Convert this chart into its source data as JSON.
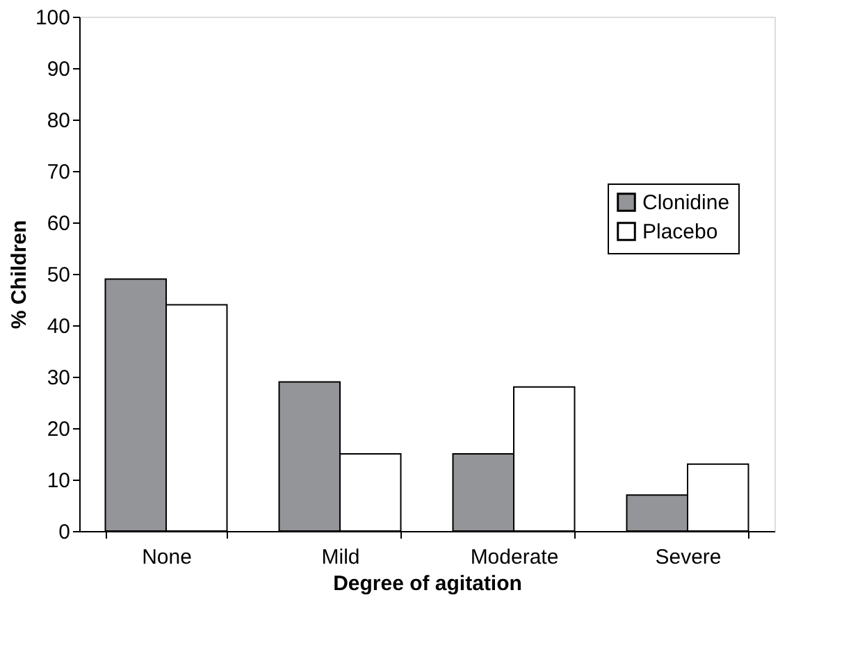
{
  "chart_data": {
    "type": "bar",
    "xlabel": "Degree of agitation",
    "ylabel": "% Children",
    "categories": [
      "None",
      "Mild",
      "Moderate",
      "Severe"
    ],
    "series": [
      {
        "name": "Clonidine",
        "color": "#939598",
        "values": [
          49,
          29,
          15,
          7
        ]
      },
      {
        "name": "Placebo",
        "color": "#ffffff",
        "values": [
          44,
          15,
          28,
          13
        ]
      }
    ],
    "ylim": [
      0,
      100
    ],
    "yticks": [
      0,
      10,
      20,
      30,
      40,
      50,
      60,
      70,
      80,
      90,
      100
    ],
    "grid": false,
    "legend": "right"
  }
}
